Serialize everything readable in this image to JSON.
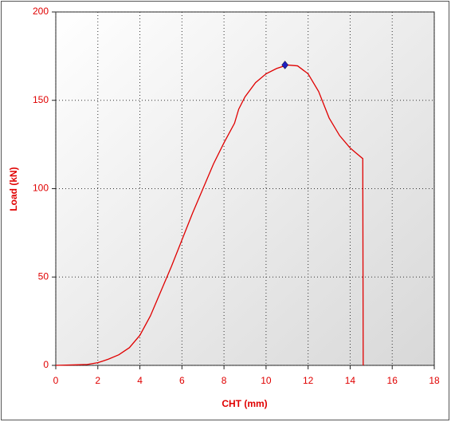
{
  "chart_data": {
    "type": "line",
    "x_label": "CHT (mm)",
    "y_label": "Load (kN)",
    "x": [
      0,
      1,
      1.5,
      2,
      2.5,
      3,
      3.5,
      4,
      4.5,
      5,
      5.5,
      6,
      6.5,
      7,
      7.5,
      8,
      8.5,
      8.7,
      9,
      9.5,
      10,
      10.5,
      11,
      11.5,
      12,
      12.5,
      13,
      13.5,
      14,
      14.3,
      14.6,
      14.62
    ],
    "series": [
      {
        "color": "#e00000",
        "values": [
          0,
          0.3,
          0.5,
          1.5,
          3.5,
          6,
          10,
          17,
          28,
          42,
          56,
          71,
          86,
          100,
          114,
          126,
          137,
          145,
          152,
          160,
          165,
          168,
          170,
          169.5,
          165,
          155,
          140,
          130,
          123,
          120,
          117,
          0
        ]
      }
    ],
    "marker": {
      "x": 10.9,
      "y": 170,
      "color": "#2020c0"
    },
    "xlim": [
      0,
      18
    ],
    "xticks": [
      0,
      2,
      4,
      6,
      8,
      10,
      12,
      14,
      16,
      18
    ],
    "ylim": [
      0,
      200
    ],
    "yticks": [
      0,
      50,
      100,
      150,
      200
    ],
    "grid": true
  }
}
